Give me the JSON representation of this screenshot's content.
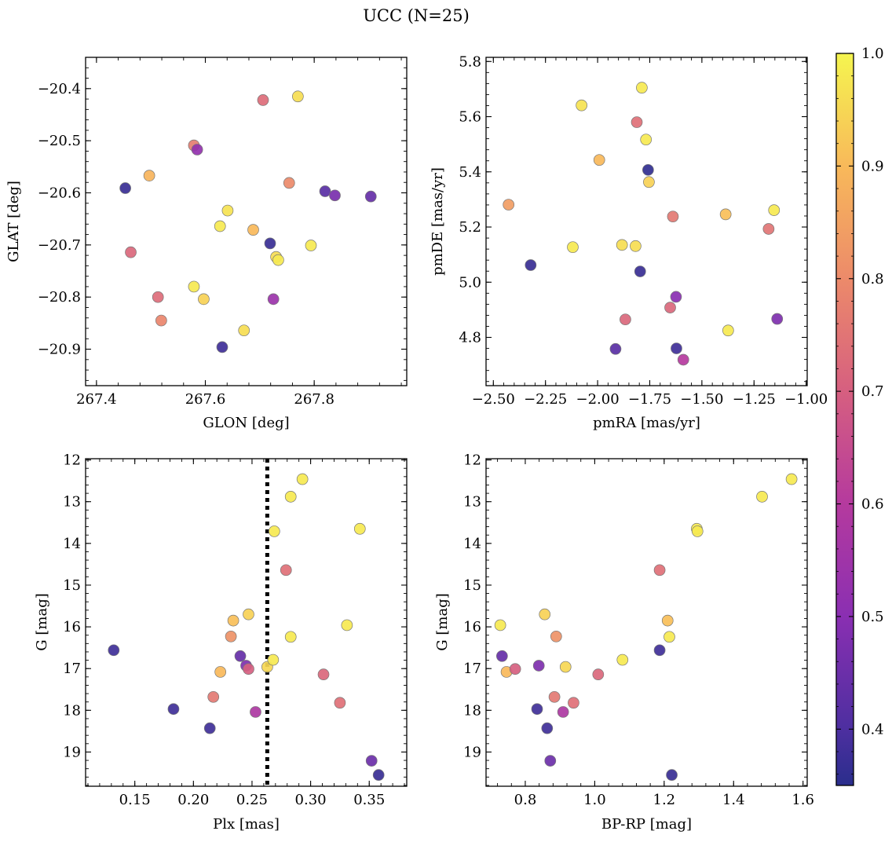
{
  "figure": {
    "title": "UCC (N=25)"
  },
  "colorbar": {
    "min": 0.35,
    "max": 1.0,
    "ticks": [
      0.4,
      0.5,
      0.6,
      0.7,
      0.8,
      0.9,
      1.0
    ],
    "tick_labels": [
      "0.4",
      "0.5",
      "0.6",
      "0.7",
      "0.8",
      "0.9",
      "1.0"
    ],
    "colormap": "plasma"
  },
  "chart_data": [
    {
      "type": "scatter",
      "id": "glon_glat",
      "xlabel": "GLON [deg]",
      "ylabel": "GLAT [deg]",
      "xlim": [
        267.38,
        267.97
      ],
      "ylim": [
        -20.97,
        -20.34
      ],
      "xticks": [
        267.4,
        267.6,
        267.8
      ],
      "xtick_labels": [
        "267.4",
        "267.6",
        "267.8"
      ],
      "yticks": [
        -20.4,
        -20.5,
        -20.6,
        -20.7,
        -20.8,
        -20.9
      ],
      "ytick_labels": [
        "−20.4",
        "−20.5",
        "−20.6",
        "−20.7",
        "−20.8",
        "−20.9"
      ],
      "points": [
        {
          "x": 267.453,
          "y": -20.591,
          "c": 0.37
        },
        {
          "x": 267.463,
          "y": -20.714,
          "c": 0.72
        },
        {
          "x": 267.497,
          "y": -20.567,
          "c": 0.89
        },
        {
          "x": 267.513,
          "y": -20.8,
          "c": 0.73
        },
        {
          "x": 267.519,
          "y": -20.845,
          "c": 0.79
        },
        {
          "x": 267.579,
          "y": -20.509,
          "c": 0.77
        },
        {
          "x": 267.585,
          "y": -20.517,
          "c": 0.52
        },
        {
          "x": 267.579,
          "y": -20.78,
          "c": 0.98
        },
        {
          "x": 267.597,
          "y": -20.804,
          "c": 0.94
        },
        {
          "x": 267.627,
          "y": -20.664,
          "c": 0.98
        },
        {
          "x": 267.631,
          "y": -20.896,
          "c": 0.38
        },
        {
          "x": 267.641,
          "y": -20.634,
          "c": 0.97
        },
        {
          "x": 267.671,
          "y": -20.864,
          "c": 0.96
        },
        {
          "x": 267.688,
          "y": -20.671,
          "c": 0.9
        },
        {
          "x": 267.706,
          "y": -20.422,
          "c": 0.73
        },
        {
          "x": 267.719,
          "y": -20.697,
          "c": 0.37
        },
        {
          "x": 267.73,
          "y": -20.723,
          "c": 0.96
        },
        {
          "x": 267.734,
          "y": -20.729,
          "c": 0.98
        },
        {
          "x": 267.725,
          "y": -20.804,
          "c": 0.54
        },
        {
          "x": 267.754,
          "y": -20.581,
          "c": 0.8
        },
        {
          "x": 267.77,
          "y": -20.415,
          "c": 0.96
        },
        {
          "x": 267.794,
          "y": -20.701,
          "c": 0.98
        },
        {
          "x": 267.82,
          "y": -20.597,
          "c": 0.42
        },
        {
          "x": 267.838,
          "y": -20.605,
          "c": 0.47
        },
        {
          "x": 267.904,
          "y": -20.607,
          "c": 0.44
        }
      ]
    },
    {
      "type": "scatter",
      "id": "pm",
      "xlabel": "pmRA [mas/yr]",
      "ylabel": "pmDE [mas/yr]",
      "xlim": [
        -2.535,
        -0.995
      ],
      "ylim": [
        4.625,
        5.815
      ],
      "xticks": [
        -2.5,
        -2.25,
        -2.0,
        -1.75,
        -1.5,
        -1.25,
        -1.0
      ],
      "xtick_labels": [
        "−2.50",
        "−2.25",
        "−2.00",
        "−1.75",
        "−1.50",
        "−1.25",
        "−1.00"
      ],
      "yticks": [
        4.8,
        5.0,
        5.2,
        5.4,
        5.6,
        5.8
      ],
      "ytick_labels": [
        "4.8",
        "5.0",
        "5.2",
        "5.4",
        "5.6",
        "5.8"
      ],
      "points": [
        {
          "x": -2.427,
          "y": 5.281,
          "c": 0.84
        },
        {
          "x": -2.321,
          "y": 5.062,
          "c": 0.37
        },
        {
          "x": -2.119,
          "y": 5.127,
          "c": 0.98
        },
        {
          "x": -2.077,
          "y": 5.641,
          "c": 0.97
        },
        {
          "x": -1.992,
          "y": 5.443,
          "c": 0.9
        },
        {
          "x": -1.914,
          "y": 4.758,
          "c": 0.42
        },
        {
          "x": -1.883,
          "y": 5.135,
          "c": 0.96
        },
        {
          "x": -1.867,
          "y": 4.865,
          "c": 0.72
        },
        {
          "x": -1.818,
          "y": 5.131,
          "c": 0.96
        },
        {
          "x": -1.812,
          "y": 5.58,
          "c": 0.74
        },
        {
          "x": -1.796,
          "y": 5.039,
          "c": 0.37
        },
        {
          "x": -1.788,
          "y": 5.705,
          "c": 0.98
        },
        {
          "x": -1.768,
          "y": 5.517,
          "c": 0.98
        },
        {
          "x": -1.758,
          "y": 5.407,
          "c": 0.36
        },
        {
          "x": -1.754,
          "y": 5.363,
          "c": 0.94
        },
        {
          "x": -1.652,
          "y": 4.908,
          "c": 0.72
        },
        {
          "x": -1.639,
          "y": 5.238,
          "c": 0.76
        },
        {
          "x": -1.624,
          "y": 4.947,
          "c": 0.5
        },
        {
          "x": -1.622,
          "y": 4.76,
          "c": 0.38
        },
        {
          "x": -1.589,
          "y": 4.719,
          "c": 0.6
        },
        {
          "x": -1.386,
          "y": 5.246,
          "c": 0.91
        },
        {
          "x": -1.374,
          "y": 4.825,
          "c": 0.98
        },
        {
          "x": -1.18,
          "y": 5.193,
          "c": 0.75
        },
        {
          "x": -1.154,
          "y": 5.261,
          "c": 0.98
        },
        {
          "x": -1.139,
          "y": 4.867,
          "c": 0.48
        }
      ]
    },
    {
      "type": "scatter",
      "id": "plx_g",
      "xlabel": "Plx [mas]",
      "ylabel": "G [mag]",
      "xlim": [
        0.108,
        0.382
      ],
      "ylim": [
        19.82,
        11.97
      ],
      "xticks": [
        0.15,
        0.2,
        0.25,
        0.3,
        0.35
      ],
      "xtick_labels": [
        "0.15",
        "0.20",
        "0.25",
        "0.30",
        "0.35"
      ],
      "yticks": [
        12,
        13,
        14,
        15,
        16,
        17,
        18,
        19
      ],
      "ytick_labels": [
        "12",
        "13",
        "14",
        "15",
        "16",
        "17",
        "18",
        "19"
      ],
      "vline": 0.263,
      "points": [
        {
          "x": 0.132,
          "y": 16.56,
          "c": 0.38
        },
        {
          "x": 0.183,
          "y": 17.97,
          "c": 0.38
        },
        {
          "x": 0.214,
          "y": 18.43,
          "c": 0.38
        },
        {
          "x": 0.217,
          "y": 17.68,
          "c": 0.76
        },
        {
          "x": 0.223,
          "y": 17.08,
          "c": 0.9
        },
        {
          "x": 0.232,
          "y": 16.23,
          "c": 0.82
        },
        {
          "x": 0.234,
          "y": 15.85,
          "c": 0.91
        },
        {
          "x": 0.24,
          "y": 16.7,
          "c": 0.44
        },
        {
          "x": 0.245,
          "y": 16.93,
          "c": 0.48
        },
        {
          "x": 0.247,
          "y": 17.01,
          "c": 0.7
        },
        {
          "x": 0.247,
          "y": 15.7,
          "c": 0.94
        },
        {
          "x": 0.253,
          "y": 18.04,
          "c": 0.58
        },
        {
          "x": 0.263,
          "y": 16.96,
          "c": 0.95
        },
        {
          "x": 0.268,
          "y": 16.79,
          "c": 0.98
        },
        {
          "x": 0.269,
          "y": 13.71,
          "c": 0.98
        },
        {
          "x": 0.279,
          "y": 14.64,
          "c": 0.74
        },
        {
          "x": 0.283,
          "y": 12.88,
          "c": 0.98
        },
        {
          "x": 0.283,
          "y": 16.24,
          "c": 0.98
        },
        {
          "x": 0.293,
          "y": 12.46,
          "c": 0.98
        },
        {
          "x": 0.311,
          "y": 17.14,
          "c": 0.72
        },
        {
          "x": 0.325,
          "y": 17.82,
          "c": 0.74
        },
        {
          "x": 0.331,
          "y": 15.96,
          "c": 0.98
        },
        {
          "x": 0.342,
          "y": 13.65,
          "c": 0.98
        },
        {
          "x": 0.352,
          "y": 19.21,
          "c": 0.45
        },
        {
          "x": 0.358,
          "y": 19.55,
          "c": 0.37
        }
      ]
    },
    {
      "type": "scatter",
      "id": "cmd",
      "xlabel": "BP-RP [mag]",
      "ylabel": "G [mag]",
      "xlim": [
        0.687,
        1.612
      ],
      "ylim": [
        19.82,
        11.97
      ],
      "xticks": [
        0.8,
        1.0,
        1.2,
        1.4,
        1.6
      ],
      "xtick_labels": [
        "0.8",
        "1.0",
        "1.2",
        "1.4",
        "1.6"
      ],
      "yticks": [
        12,
        13,
        14,
        15,
        16,
        17,
        18,
        19
      ],
      "ytick_labels": [
        "12",
        "13",
        "14",
        "15",
        "16",
        "17",
        "18",
        "19"
      ],
      "points": [
        {
          "x": 0.728,
          "y": 15.96,
          "c": 0.98
        },
        {
          "x": 0.733,
          "y": 16.7,
          "c": 0.44
        },
        {
          "x": 0.746,
          "y": 17.08,
          "c": 0.9
        },
        {
          "x": 0.771,
          "y": 17.01,
          "c": 0.7
        },
        {
          "x": 0.834,
          "y": 17.97,
          "c": 0.38
        },
        {
          "x": 0.839,
          "y": 16.93,
          "c": 0.48
        },
        {
          "x": 0.856,
          "y": 15.7,
          "c": 0.94
        },
        {
          "x": 0.863,
          "y": 18.43,
          "c": 0.38
        },
        {
          "x": 0.872,
          "y": 19.21,
          "c": 0.45
        },
        {
          "x": 0.884,
          "y": 17.68,
          "c": 0.76
        },
        {
          "x": 0.889,
          "y": 16.23,
          "c": 0.82
        },
        {
          "x": 0.909,
          "y": 18.04,
          "c": 0.58
        },
        {
          "x": 0.916,
          "y": 16.96,
          "c": 0.95
        },
        {
          "x": 0.939,
          "y": 17.82,
          "c": 0.74
        },
        {
          "x": 1.01,
          "y": 17.14,
          "c": 0.72
        },
        {
          "x": 1.08,
          "y": 16.79,
          "c": 0.98
        },
        {
          "x": 1.187,
          "y": 14.64,
          "c": 0.74
        },
        {
          "x": 1.187,
          "y": 16.56,
          "c": 0.38
        },
        {
          "x": 1.21,
          "y": 15.85,
          "c": 0.91
        },
        {
          "x": 1.215,
          "y": 16.24,
          "c": 0.98
        },
        {
          "x": 1.222,
          "y": 19.55,
          "c": 0.37
        },
        {
          "x": 1.294,
          "y": 13.65,
          "c": 0.98
        },
        {
          "x": 1.296,
          "y": 13.71,
          "c": 0.98
        },
        {
          "x": 1.482,
          "y": 12.88,
          "c": 0.98
        },
        {
          "x": 1.567,
          "y": 12.46,
          "c": 0.98
        }
      ]
    }
  ]
}
